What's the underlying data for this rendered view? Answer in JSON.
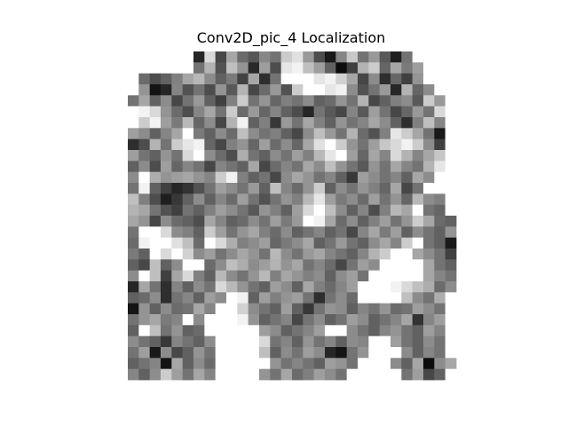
{
  "chart_data": {
    "type": "heatmap",
    "title": "Conv2D_pic_4 Localization",
    "xlabel": "",
    "ylabel": "",
    "axes_visible": false,
    "grid": false,
    "colormap": "gray_r",
    "value_range": [
      0,
      1
    ],
    "rows": 30,
    "cols": 30,
    "values": [
      [
        0.0,
        0.0,
        0.0,
        0.0,
        0.0,
        0.0,
        0.85,
        0.15,
        0.72,
        0.35,
        0.58,
        0.66,
        0.47,
        0.55,
        0.2,
        0.12,
        0.4,
        0.7,
        0.9,
        0.48,
        0.22,
        0.55,
        0.4,
        0.65,
        0.88,
        0.55,
        0.0,
        0.0,
        0.0,
        0.0
      ],
      [
        0.0,
        0.0,
        0.0,
        0.0,
        0.0,
        0.0,
        0.55,
        0.3,
        0.68,
        0.25,
        0.42,
        0.84,
        0.38,
        0.7,
        0.1,
        0.05,
        0.25,
        0.38,
        0.62,
        0.95,
        0.75,
        0.3,
        0.2,
        0.6,
        0.35,
        0.52,
        0.38,
        0.0,
        0.0,
        0.0
      ],
      [
        0.0,
        0.58,
        0.7,
        0.62,
        0.5,
        0.35,
        0.28,
        0.45,
        0.62,
        0.52,
        0.74,
        0.35,
        0.82,
        0.55,
        0.0,
        0.0,
        0.0,
        0.1,
        0.05,
        0.18,
        0.35,
        0.72,
        0.45,
        0.82,
        0.6,
        0.75,
        0.42,
        0.0,
        0.0,
        0.0
      ],
      [
        0.0,
        0.42,
        0.92,
        0.85,
        0.48,
        0.68,
        0.55,
        0.7,
        0.42,
        0.65,
        0.3,
        0.72,
        0.58,
        0.4,
        0.68,
        0.2,
        0.0,
        0.0,
        0.1,
        0.05,
        0.45,
        0.68,
        0.55,
        0.4,
        0.85,
        0.3,
        0.6,
        0.45,
        0.0,
        0.0
      ],
      [
        0.55,
        0.35,
        0.62,
        0.45,
        0.72,
        0.55,
        0.4,
        0.62,
        0.75,
        0.5,
        0.2,
        0.55,
        0.42,
        0.6,
        0.5,
        0.55,
        0.45,
        0.62,
        0.58,
        0.42,
        0.55,
        0.3,
        0.72,
        0.62,
        0.5,
        0.45,
        0.65,
        0.2,
        0.4,
        0.0
      ],
      [
        0.0,
        0.05,
        0.15,
        0.42,
        0.58,
        0.7,
        0.48,
        0.35,
        0.55,
        0.2,
        0.58,
        0.4,
        0.6,
        0.48,
        0.62,
        0.7,
        0.85,
        0.55,
        0.65,
        0.72,
        0.48,
        0.65,
        0.38,
        0.55,
        0.72,
        0.6,
        0.4,
        0.55,
        0.15,
        0.0
      ],
      [
        0.0,
        0.2,
        0.05,
        0.38,
        0.52,
        0.28,
        0.6,
        0.45,
        0.72,
        0.3,
        0.05,
        0.62,
        0.5,
        0.78,
        0.4,
        0.55,
        0.35,
        0.5,
        0.62,
        0.42,
        0.55,
        0.48,
        0.35,
        0.45,
        0.62,
        0.82,
        0.5,
        0.25,
        0.48,
        0.0
      ],
      [
        0.38,
        0.45,
        0.62,
        0.48,
        0.35,
        0.0,
        0.52,
        0.62,
        0.45,
        0.58,
        0.25,
        0.45,
        0.55,
        0.5,
        0.62,
        0.72,
        0.45,
        0.25,
        0.4,
        0.55,
        0.3,
        0.58,
        0.68,
        0.5,
        0.1,
        0.2,
        0.35,
        0.55,
        0.9,
        0.0
      ],
      [
        0.82,
        0.7,
        0.3,
        0.55,
        0.2,
        0.1,
        0.05,
        0.6,
        0.72,
        0.5,
        0.42,
        0.6,
        0.38,
        0.58,
        0.45,
        0.6,
        0.35,
        0.12,
        0.0,
        0.2,
        0.42,
        0.55,
        0.38,
        0.22,
        0.15,
        0.05,
        0.2,
        0.45,
        0.75,
        0.0
      ],
      [
        0.38,
        0.55,
        0.62,
        0.42,
        0.55,
        0.15,
        0.0,
        0.45,
        0.58,
        0.7,
        0.32,
        0.55,
        0.62,
        0.45,
        0.55,
        0.38,
        0.5,
        0.28,
        0.1,
        0.0,
        0.38,
        0.6,
        0.35,
        0.48,
        0.15,
        0.3,
        0.48,
        0.35,
        0.22,
        0.0
      ],
      [
        0.62,
        0.45,
        0.7,
        0.38,
        0.6,
        0.48,
        0.55,
        0.72,
        0.48,
        0.55,
        0.62,
        0.35,
        0.72,
        0.58,
        0.48,
        0.55,
        0.35,
        0.45,
        0.25,
        0.42,
        0.55,
        0.65,
        0.42,
        0.55,
        0.35,
        0.48,
        0.55,
        0.3,
        0.1,
        0.0
      ],
      [
        0.45,
        0.0,
        0.32,
        0.42,
        0.38,
        0.35,
        0.42,
        0.48,
        0.2,
        0.05,
        0.5,
        0.62,
        0.55,
        0.72,
        0.45,
        0.35,
        0.42,
        0.55,
        0.48,
        0.62,
        0.78,
        0.38,
        0.45,
        0.55,
        0.48,
        0.62,
        0.35,
        0.45,
        0.0,
        0.0
      ],
      [
        0.55,
        0.05,
        0.62,
        0.75,
        0.85,
        0.8,
        0.68,
        0.55,
        0.38,
        0.45,
        0.55,
        0.4,
        0.62,
        0.25,
        0.48,
        0.58,
        0.42,
        0.2,
        0.62,
        0.45,
        0.55,
        0.42,
        0.5,
        0.6,
        0.35,
        0.72,
        0.55,
        0.0,
        0.0,
        0.0
      ],
      [
        0.25,
        0.5,
        0.7,
        0.88,
        0.78,
        0.62,
        0.45,
        0.62,
        0.48,
        0.58,
        0.38,
        0.55,
        0.68,
        0.55,
        0.42,
        0.5,
        0.28,
        0.1,
        0.38,
        0.52,
        0.45,
        0.58,
        0.38,
        0.55,
        0.42,
        0.6,
        0.28,
        0.45,
        0.5,
        0.0
      ],
      [
        0.3,
        0.35,
        0.55,
        0.68,
        0.75,
        0.55,
        0.62,
        0.5,
        0.38,
        0.45,
        0.55,
        0.65,
        0.42,
        0.5,
        0.62,
        0.38,
        0.15,
        0.0,
        0.25,
        0.45,
        0.62,
        0.48,
        0.7,
        0.5,
        0.28,
        0.35,
        0.0,
        0.55,
        0.6,
        0.0
      ],
      [
        0.35,
        0.42,
        0.72,
        0.45,
        0.58,
        0.62,
        0.7,
        0.35,
        0.48,
        0.62,
        0.58,
        0.45,
        0.55,
        0.38,
        0.52,
        0.4,
        0.0,
        0.05,
        0.35,
        0.58,
        0.45,
        0.62,
        0.5,
        0.38,
        0.55,
        0.42,
        0.2,
        0.35,
        0.58,
        0.62
      ],
      [
        0.55,
        0.0,
        0.0,
        0.15,
        0.45,
        0.5,
        0.62,
        0.2,
        0.38,
        0.55,
        0.42,
        0.35,
        0.5,
        0.58,
        0.45,
        0.62,
        0.55,
        0.48,
        0.62,
        0.55,
        0.72,
        0.48,
        0.35,
        0.52,
        0.38,
        0.62,
        0.45,
        0.55,
        0.62,
        0.42
      ],
      [
        0.58,
        0.05,
        0.0,
        0.0,
        0.12,
        0.25,
        0.58,
        0.0,
        0.15,
        0.32,
        0.5,
        0.45,
        0.38,
        0.6,
        0.52,
        0.45,
        0.35,
        0.62,
        0.55,
        0.4,
        0.55,
        0.62,
        0.45,
        0.35,
        0.48,
        0.2,
        0.0,
        0.55,
        0.62,
        0.9
      ],
      [
        0.52,
        0.62,
        0.0,
        0.15,
        0.0,
        0.18,
        0.45,
        0.38,
        0.55,
        0.45,
        0.35,
        0.42,
        0.55,
        0.28,
        0.45,
        0.55,
        0.4,
        0.35,
        0.48,
        0.55,
        0.62,
        0.48,
        0.3,
        0.2,
        0.0,
        0.0,
        0.35,
        0.45,
        0.55,
        0.75
      ],
      [
        0.62,
        0.72,
        0.25,
        0.62,
        0.45,
        0.0,
        0.0,
        0.58,
        0.45,
        0.25,
        0.32,
        0.45,
        0.38,
        0.3,
        0.42,
        0.35,
        0.55,
        0.48,
        0.58,
        0.72,
        0.55,
        0.38,
        0.45,
        0.0,
        0.0,
        0.0,
        0.0,
        0.35,
        0.55,
        0.62
      ],
      [
        0.45,
        0.0,
        0.25,
        0.75,
        0.35,
        0.15,
        0.5,
        0.62,
        0.28,
        0.45,
        0.55,
        0.42,
        0.28,
        0.5,
        0.35,
        0.42,
        0.5,
        0.45,
        0.62,
        0.45,
        0.38,
        0.55,
        0.0,
        0.0,
        0.0,
        0.0,
        0.0,
        0.35,
        0.48,
        0.55
      ],
      [
        0.85,
        0.35,
        0.55,
        0.82,
        0.48,
        0.62,
        0.45,
        0.55,
        0.15,
        0.28,
        0.42,
        0.55,
        0.62,
        0.38,
        0.45,
        0.62,
        0.35,
        0.5,
        0.58,
        0.48,
        0.38,
        0.0,
        0.0,
        0.0,
        0.05,
        0.15,
        0.25,
        0.32,
        0.58,
        0.45
      ],
      [
        0.62,
        0.58,
        0.45,
        0.82,
        0.55,
        0.48,
        0.62,
        0.38,
        0.45,
        0.0,
        0.05,
        0.62,
        0.38,
        0.5,
        0.42,
        0.38,
        0.55,
        0.82,
        0.55,
        0.45,
        0.58,
        0.0,
        0.0,
        0.0,
        0.0,
        0.25,
        0.45,
        0.55,
        0.32,
        0.0
      ],
      [
        0.92,
        0.42,
        0.62,
        0.45,
        0.58,
        0.55,
        0.35,
        0.48,
        0.0,
        0.0,
        0.18,
        0.45,
        0.55,
        0.62,
        0.38,
        0.62,
        0.78,
        0.55,
        0.42,
        0.45,
        0.62,
        0.48,
        0.55,
        0.42,
        0.58,
        0.55,
        0.38,
        0.45,
        0.55,
        0.0
      ],
      [
        0.55,
        0.42,
        0.35,
        0.52,
        0.48,
        0.0,
        0.45,
        0.0,
        0.0,
        0.0,
        0.05,
        0.42,
        0.62,
        0.55,
        0.48,
        0.72,
        0.55,
        0.45,
        0.62,
        0.55,
        0.38,
        0.45,
        0.62,
        0.55,
        0.48,
        0.35,
        0.8,
        0.48,
        0.38,
        0.0
      ],
      [
        0.62,
        0.0,
        0.25,
        0.55,
        0.42,
        0.62,
        0.58,
        0.0,
        0.0,
        0.0,
        0.0,
        0.0,
        0.38,
        0.45,
        0.62,
        0.55,
        0.48,
        0.38,
        0.0,
        0.0,
        0.45,
        0.55,
        0.62,
        0.48,
        0.42,
        0.55,
        0.62,
        0.38,
        0.48,
        0.0
      ],
      [
        0.45,
        0.55,
        0.62,
        0.78,
        0.48,
        0.55,
        0.62,
        0.45,
        0.0,
        0.0,
        0.0,
        0.0,
        0.15,
        0.55,
        0.48,
        0.62,
        0.42,
        0.55,
        0.48,
        0.62,
        0.45,
        0.48,
        0.0,
        0.0,
        0.38,
        0.55,
        0.62,
        0.45,
        0.55,
        0.0
      ],
      [
        0.55,
        0.38,
        0.9,
        0.45,
        0.72,
        0.62,
        0.42,
        0.55,
        0.0,
        0.0,
        0.0,
        0.0,
        0.25,
        0.62,
        0.45,
        0.55,
        0.38,
        0.45,
        0.85,
        0.92,
        0.55,
        0.42,
        0.0,
        0.0,
        0.0,
        0.45,
        0.62,
        0.48,
        0.55,
        0.0
      ],
      [
        0.62,
        0.55,
        0.48,
        0.92,
        0.35,
        0.62,
        0.45,
        0.58,
        0.0,
        0.0,
        0.0,
        0.0,
        0.0,
        0.42,
        0.55,
        0.48,
        0.55,
        0.62,
        0.38,
        0.42,
        0.55,
        0.0,
        0.0,
        0.0,
        0.45,
        0.62,
        0.35,
        0.95,
        0.45,
        0.35
      ],
      [
        0.48,
        0.62,
        0.45,
        0.2,
        0.38,
        0.55,
        0.35,
        0.48,
        0.0,
        0.0,
        0.0,
        0.0,
        0.42,
        0.55,
        0.35,
        0.58,
        0.5,
        0.38,
        0.45,
        0.55,
        0.0,
        0.0,
        0.0,
        0.0,
        0.0,
        0.55,
        0.38,
        0.72,
        0.62,
        0.0
      ]
    ]
  }
}
